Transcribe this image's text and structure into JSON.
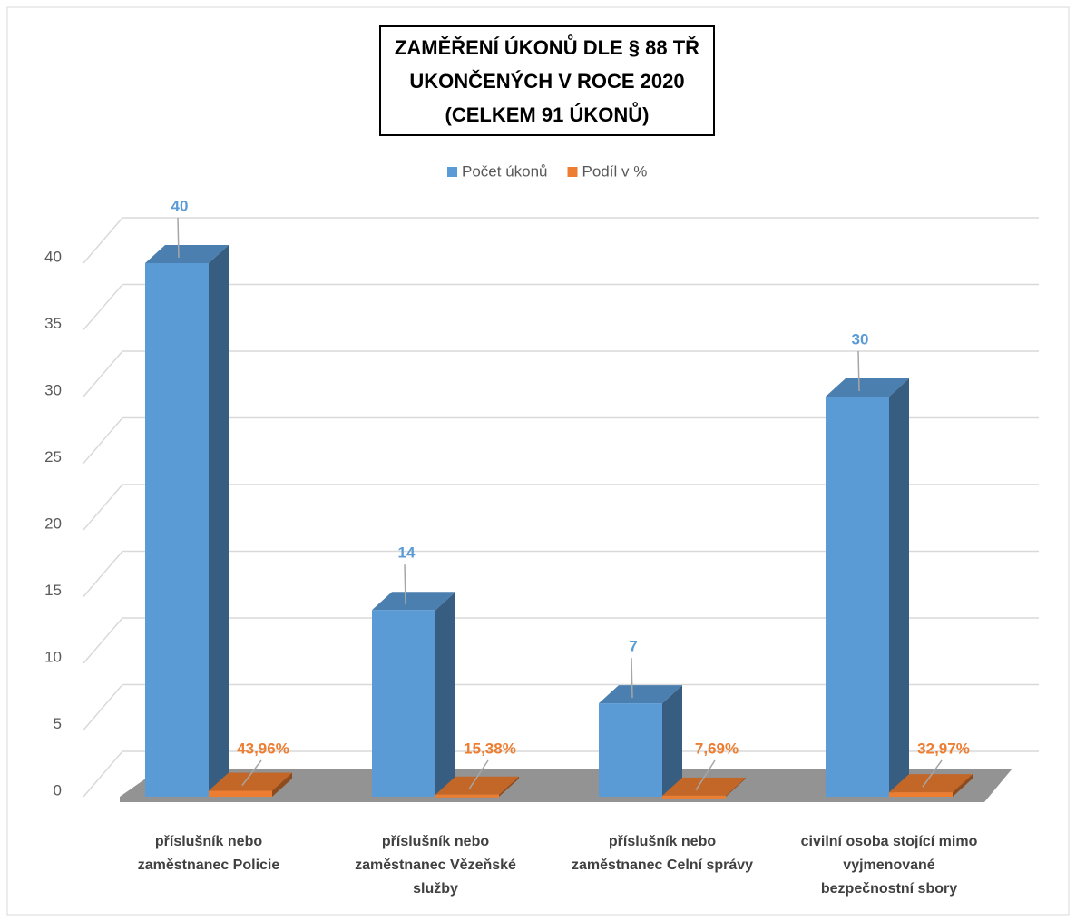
{
  "chart_data": {
    "type": "bar3d",
    "title": "ZAMĚŘENÍ ÚKONŮ DLE § 88 TŘ\nUKONČENÝCH V ROCE 2020\n(CELKEM 91 ÚKONŮ)",
    "categories": [
      "příslušník nebo\nzaměstnanec Policie",
      "příslušník nebo\nzaměstnanec Vězeňské\nslužby",
      "příslušník nebo\nzaměstnanec Celní správy",
      "civilní osoba stojící mimo\nvyjmenované\nbezpečnostní sbory"
    ],
    "series": [
      {
        "name": "Počet úkonů",
        "color": "#5b9bd5",
        "values": [
          40,
          14,
          7,
          30
        ]
      },
      {
        "name": "Podíl v %",
        "color": "#ed7d31",
        "values": [
          0.4396,
          0.1538,
          0.0769,
          0.3297
        ],
        "value_labels": [
          "43,96%",
          "15,38%",
          "7,69%",
          "32,97%"
        ]
      }
    ],
    "ylim": [
      0,
      40
    ],
    "yticks": [
      0,
      5,
      10,
      15,
      20,
      25,
      30,
      35,
      40
    ],
    "grid": true,
    "legend": "top"
  }
}
